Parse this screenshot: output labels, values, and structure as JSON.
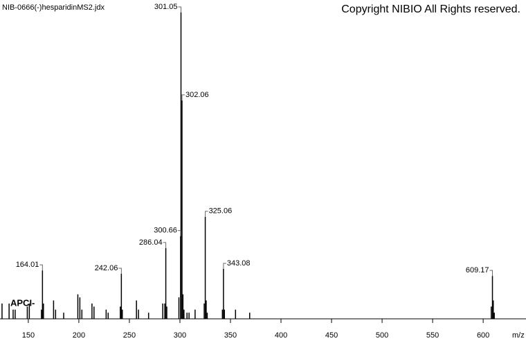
{
  "chart_data": {
    "type": "stem",
    "title": "NIB-0666(-)hesparidinMS2.jdx",
    "copyright": "Copyright NIBIO All Rights reserved.",
    "annotation": "APCI-",
    "xlabel": "m/z",
    "color": "#000000",
    "xlim": [
      122,
      641
    ],
    "ylim": [
      0,
      100
    ],
    "xticks": [
      150,
      200,
      250,
      300,
      350,
      400,
      450,
      500,
      550,
      600
    ],
    "series": [
      {
        "show_labels": true,
        "x": [
          301.05,
          302.06,
          300.66,
          286.04,
          325.06,
          343.08,
          164.01,
          242.06,
          609.17
        ],
        "values": [
          100,
          71.3,
          27,
          23.1,
          33.3,
          16.3,
          15.8,
          14.7,
          14
        ]
      },
      {
        "show_labels": false,
        "x": [
          124,
          131,
          135,
          137,
          149,
          151,
          163,
          165,
          175,
          177,
          185,
          199,
          201,
          203,
          213,
          215,
          227,
          229,
          241,
          243,
          257,
          259,
          269,
          283,
          285,
          287,
          299,
          303,
          304,
          307,
          309,
          315,
          324,
          326,
          327,
          342,
          344,
          355,
          369,
          608,
          610,
          611
        ],
        "values": [
          5,
          5,
          3,
          3,
          4,
          5,
          3,
          5,
          6,
          3,
          2,
          8,
          7,
          3,
          5,
          4,
          3,
          2,
          4,
          3,
          6,
          3,
          2,
          5,
          5,
          4,
          7,
          8,
          3,
          2,
          2,
          3,
          5,
          6,
          2,
          3,
          3,
          3,
          2,
          4,
          6,
          2
        ]
      }
    ]
  }
}
